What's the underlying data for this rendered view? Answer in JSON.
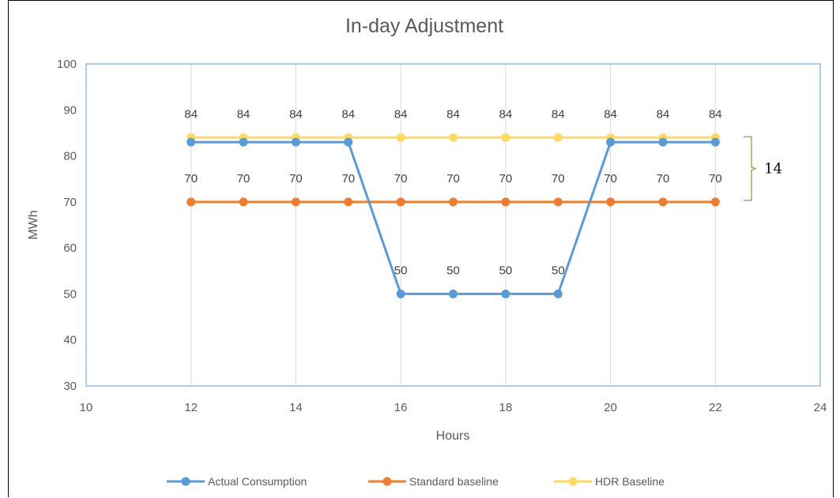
{
  "chart_data": {
    "type": "line",
    "title": "In-day Adjustment",
    "xlabel": "Hours",
    "ylabel": "MWh",
    "xlim": [
      10,
      24
    ],
    "ylim": [
      30,
      100
    ],
    "xticks": [
      10,
      12,
      14,
      16,
      18,
      20,
      22,
      24
    ],
    "yticks": [
      30,
      40,
      50,
      60,
      70,
      80,
      90,
      100
    ],
    "grid": "vertical",
    "legend_position": "bottom",
    "x": [
      12,
      13,
      14,
      15,
      16,
      17,
      18,
      19,
      20,
      21,
      22
    ],
    "series": [
      {
        "name": "Actual Consumption",
        "color": "#5b9bd5",
        "values": [
          83,
          83,
          83,
          83,
          50,
          50,
          50,
          50,
          83,
          83,
          83
        ],
        "data_labels": [
          "",
          "",
          "",
          "",
          "50",
          "50",
          "50",
          "50",
          "",
          "",
          ""
        ]
      },
      {
        "name": "Standard baseline",
        "color": "#ed7d31",
        "values": [
          70,
          70,
          70,
          70,
          70,
          70,
          70,
          70,
          70,
          70,
          70
        ],
        "data_labels": [
          "70",
          "70",
          "70",
          "70",
          "70",
          "70",
          "70",
          "70",
          "70",
          "70",
          "70"
        ]
      },
      {
        "name": "HDR Baseline",
        "color": "#ffd966",
        "values": [
          84,
          84,
          84,
          84,
          84,
          84,
          84,
          84,
          84,
          84,
          84
        ],
        "data_labels": [
          "84",
          "84",
          "84",
          "84",
          "84",
          "84",
          "84",
          "84",
          "84",
          "84",
          "84"
        ]
      }
    ],
    "annotation": {
      "text": "14",
      "color": "#70ad47",
      "from": 84,
      "to": 70
    }
  }
}
